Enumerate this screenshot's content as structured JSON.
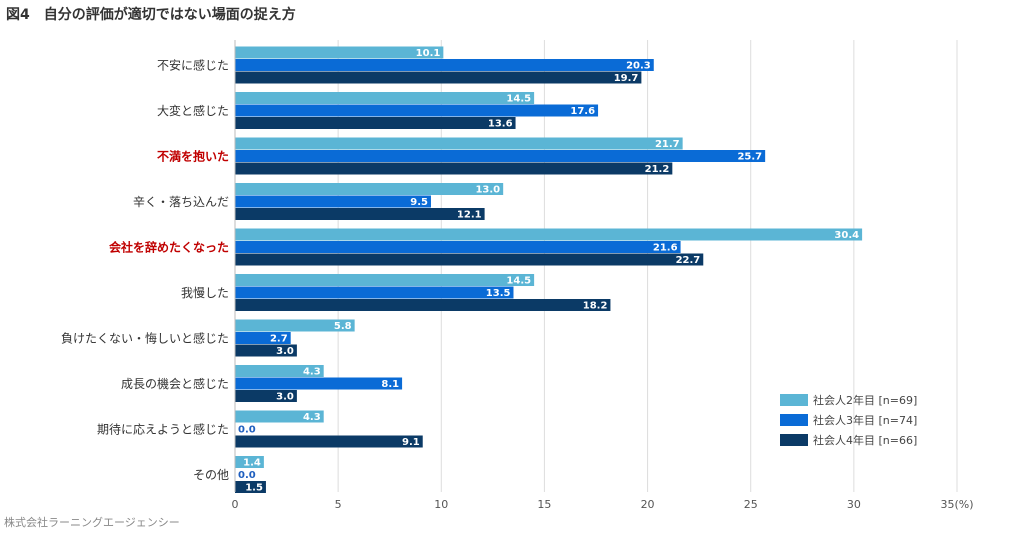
{
  "page": {
    "title": "図4　自分の評価が適切ではない場面の捉え方",
    "source": "株式会社ラーニングエージェンシー"
  },
  "chart_data": {
    "type": "bar",
    "orientation": "horizontal",
    "title": "図4　自分の評価が適切ではない場面の捉え方",
    "categories": [
      "不安に感じた",
      "大変と感じた",
      "不満を抱いた",
      "辛く・落ち込んだ",
      "会社を辞めたくなった",
      "我慢した",
      "負けたくない・悔しいと感じた",
      "成長の機会と感じた",
      "期待に応えようと感じた",
      "その他"
    ],
    "highlighted_categories": [
      "不満を抱いた",
      "会社を辞めたくなった"
    ],
    "series": [
      {
        "name": "社会人2年目 [n=69]",
        "color": "#5bb5d5",
        "values": [
          10.1,
          14.5,
          21.7,
          13.0,
          30.4,
          14.5,
          5.8,
          4.3,
          4.3,
          1.4
        ]
      },
      {
        "name": "社会人3年目 [n=74]",
        "color": "#0a6bd6",
        "values": [
          20.3,
          17.6,
          25.7,
          9.5,
          21.6,
          13.5,
          2.7,
          8.1,
          0.0,
          0.0
        ]
      },
      {
        "name": "社会人4年目 [n=66]",
        "color": "#0b3a66",
        "values": [
          19.7,
          13.6,
          21.2,
          12.1,
          22.7,
          18.2,
          3.0,
          3.0,
          9.1,
          1.5
        ]
      }
    ],
    "xlim": [
      0,
      35
    ],
    "x_ticks": [
      "0",
      "5",
      "10",
      "15",
      "20",
      "25",
      "30",
      "35(%)"
    ],
    "grid": true,
    "legend_position": "bottom-right"
  }
}
